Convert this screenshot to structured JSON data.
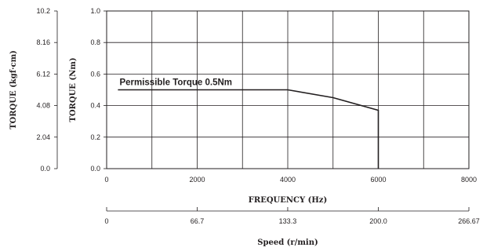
{
  "chart_data": {
    "type": "line",
    "xlabel": "FREQUENCY (Hz)",
    "ylabel": "TORQUE (Nm)",
    "xlim": [
      0,
      8000
    ],
    "ylim": [
      0,
      1.0
    ],
    "x_ticks": [
      "0",
      "2000",
      "4000",
      "6000",
      "8000"
    ],
    "y_ticks": [
      "0.0",
      "0.2",
      "0.4",
      "0.6",
      "0.8",
      "1.0"
    ],
    "grid": true,
    "series": [
      {
        "x": [
          250,
          4000,
          5000,
          6000,
          6000
        ],
        "y": [
          0.5,
          0.5,
          0.45,
          0.37,
          0
        ]
      }
    ],
    "annotations": [
      {
        "text": "Permissible Torque 0.5Nm",
        "x": 250,
        "y": 0.5
      }
    ],
    "secondary_y_axis": {
      "label": "TORQUE (kgf·cm)",
      "ticks": [
        "0.0",
        "2.04",
        "4.08",
        "6.12",
        "8.16",
        "10.2"
      ],
      "ylim": [
        0,
        10.2
      ]
    },
    "secondary_x_axis": {
      "label": "Speed (r/min)",
      "ticks": [
        "0",
        "66.7",
        "133.3",
        "200.0",
        "266.67"
      ],
      "xlim": [
        0,
        266.67
      ]
    }
  }
}
